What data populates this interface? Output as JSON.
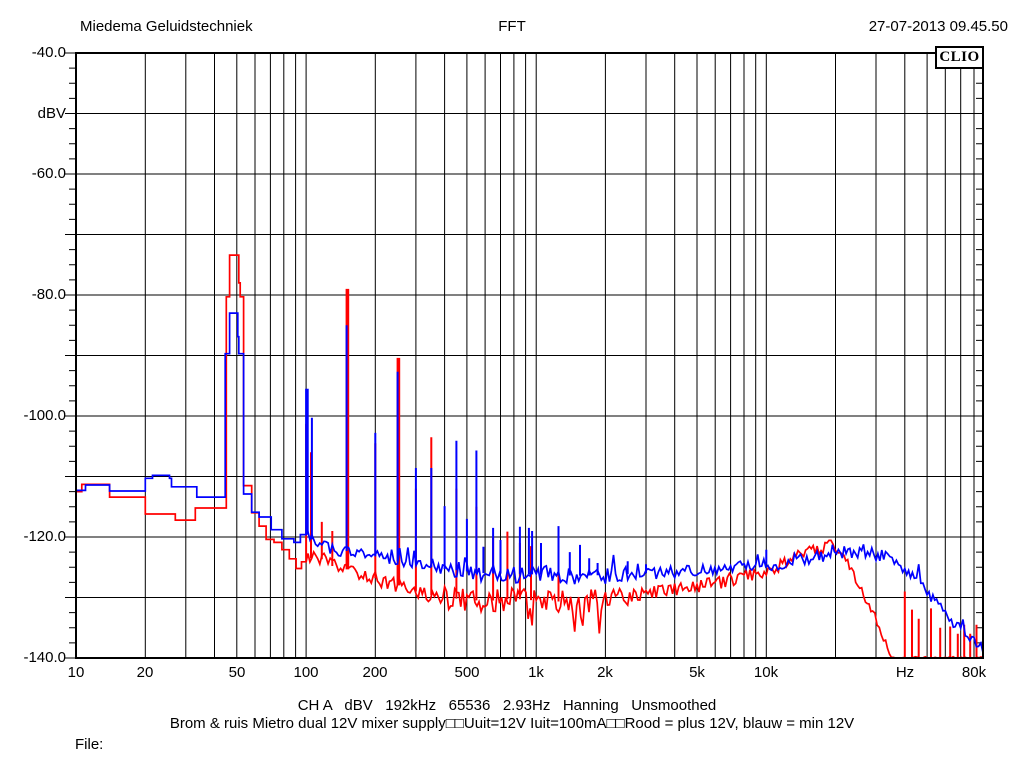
{
  "header": {
    "left": "Miedema Geluidstechniek",
    "center": "FFT",
    "right": "27-07-2013 09.45.50"
  },
  "logo": "CLIO",
  "footer": {
    "status": "CH A   dBV   192kHz   65536   2.93Hz   Hanning   Unsmoothed",
    "caption": "Brom & ruis Mietro dual 12V mixer supply□□Uuit=12V Iuit=100mA□□Rood = plus 12V, blauw = min 12V",
    "file_label": "File:"
  },
  "colors": {
    "background": "#ffffff",
    "grid": "#000000",
    "red_trace": "#ff0000",
    "blue_trace": "#0000ff"
  },
  "chart_data": {
    "type": "line",
    "title": "FFT",
    "x_axis": {
      "scale": "log",
      "unit": "Hz",
      "min_hz": 10,
      "max_hz": 87500,
      "labels": [
        {
          "text": "10",
          "hz": 10
        },
        {
          "text": "20",
          "hz": 20
        },
        {
          "text": "50",
          "hz": 50
        },
        {
          "text": "100",
          "hz": 100
        },
        {
          "text": "200",
          "hz": 200
        },
        {
          "text": "500",
          "hz": 500
        },
        {
          "text": "1k",
          "hz": 1000
        },
        {
          "text": "2k",
          "hz": 2000
        },
        {
          "text": "5k",
          "hz": 5000
        },
        {
          "text": "10k",
          "hz": 10000
        },
        {
          "text": "Hz",
          "hz": 40000
        },
        {
          "text": "80k",
          "hz": 80000
        }
      ]
    },
    "y_axis": {
      "unit": "dBV",
      "min_db": -140,
      "max_db": -40,
      "grid_step_db": 10,
      "minor_tick_db": 2.5,
      "labels": [
        {
          "text": "-40.0",
          "db": -40
        },
        {
          "text": "dBV",
          "db": -50
        },
        {
          "text": "-60.0",
          "db": -60
        },
        {
          "text": "-80.0",
          "db": -80
        },
        {
          "text": "-100.0",
          "db": -100
        },
        {
          "text": "-120.0",
          "db": -120
        },
        {
          "text": "-140.0",
          "db": -140
        }
      ]
    },
    "series": [
      {
        "name": "Rood = plus 12V",
        "color": "#ff0000",
        "noise_excursion": "down",
        "floor": [
          [
            10,
            -112.5
          ],
          [
            10.6,
            -111.3
          ],
          [
            13.5,
            -111.3
          ],
          [
            14,
            -113.4
          ],
          [
            19.5,
            -113.4
          ],
          [
            20,
            -116.2
          ],
          [
            26.5,
            -116.2
          ],
          [
            27,
            -117.2
          ],
          [
            32.5,
            -117.2
          ],
          [
            33,
            -115.2
          ],
          [
            44.5,
            -115.2
          ],
          [
            45,
            -80.3
          ],
          [
            46.5,
            -73.4
          ],
          [
            50.5,
            -73.4
          ],
          [
            51,
            -78.0
          ],
          [
            51.7,
            -80.3
          ],
          [
            53.2,
            -80.3
          ],
          [
            53.5,
            -111.5
          ],
          [
            57.5,
            -111.5
          ],
          [
            58,
            -116.0
          ],
          [
            62,
            -116.0
          ],
          [
            62.5,
            -118.2
          ],
          [
            66.5,
            -118.2
          ],
          [
            67,
            -120.4
          ],
          [
            72,
            -120.4
          ],
          [
            72.5,
            -120.9
          ],
          [
            78,
            -120.9
          ],
          [
            78.5,
            -122.1
          ],
          [
            84,
            -122.1
          ],
          [
            84.5,
            -123.6
          ],
          [
            90,
            -123.6
          ],
          [
            90.5,
            -125.2
          ],
          [
            95,
            -125.2
          ],
          [
            95.5,
            -124.1
          ],
          [
            100,
            -124.1
          ],
          [
            110,
            -123.0
          ],
          [
            130,
            -124.8
          ],
          [
            160,
            -125.6
          ],
          [
            200,
            -126.8
          ],
          [
            250,
            -128.0
          ],
          [
            320,
            -129.3
          ],
          [
            400,
            -130.0
          ],
          [
            600,
            -130.6
          ],
          [
            800,
            -130.2
          ],
          [
            1000,
            -130.5
          ],
          [
            1500,
            -130.8
          ],
          [
            2000,
            -130.2
          ],
          [
            3000,
            -129.4
          ],
          [
            4000,
            -128.6
          ],
          [
            5000,
            -128.3
          ],
          [
            6500,
            -127.4
          ],
          [
            8000,
            -126.4
          ],
          [
            10000,
            -125.6
          ],
          [
            12000,
            -124.3
          ],
          [
            14000,
            -123.1
          ],
          [
            16000,
            -122.3
          ],
          [
            18000,
            -121.6
          ],
          [
            19500,
            -121.2
          ],
          [
            21000,
            -122.3
          ],
          [
            23000,
            -124.6
          ],
          [
            25000,
            -127.4
          ],
          [
            27000,
            -130.0
          ],
          [
            29000,
            -132.6
          ],
          [
            31000,
            -135.2
          ],
          [
            33000,
            -137.6
          ],
          [
            35000,
            -140
          ],
          [
            87500,
            -140
          ]
        ],
        "spikes": [
          [
            100,
            -101.3,
            2
          ],
          [
            105,
            -106,
            2
          ],
          [
            117,
            -117.5,
            2
          ],
          [
            130,
            -119,
            2
          ],
          [
            150,
            -79.0,
            3
          ],
          [
            200,
            -104.5,
            2
          ],
          [
            250,
            -90.4,
            3
          ],
          [
            300,
            -112,
            2
          ],
          [
            350,
            -103.5,
            2
          ],
          [
            450,
            -112,
            2
          ],
          [
            550,
            -115,
            2
          ],
          [
            650,
            -120,
            2
          ],
          [
            750,
            -119.1,
            2
          ],
          [
            850,
            -121,
            2
          ],
          [
            950,
            -121.5,
            2
          ],
          [
            1250,
            -122,
            2
          ],
          [
            40000,
            -129,
            2
          ],
          [
            43000,
            -132,
            2
          ],
          [
            46000,
            -133.5,
            2
          ],
          [
            52000,
            -131.8,
            2
          ],
          [
            57000,
            -135,
            2
          ],
          [
            63000,
            -134.8,
            2
          ],
          [
            68000,
            -136,
            2
          ],
          [
            72500,
            -134.5,
            2
          ],
          [
            77000,
            -136,
            2
          ],
          [
            82000,
            -134.5,
            2
          ]
        ],
        "noise": [
          [
            100,
            400,
            1.2
          ],
          [
            400,
            2500,
            1.9
          ],
          [
            2500,
            22000,
            1.1
          ],
          [
            22000,
            33000,
            0.9
          ],
          [
            33000,
            87500,
            0.2
          ]
        ]
      },
      {
        "name": "blauw = min 12V",
        "color": "#0000ff",
        "noise_excursion": "up",
        "floor": [
          [
            10,
            -112.3
          ],
          [
            11,
            -111.4
          ],
          [
            13.5,
            -111.4
          ],
          [
            14,
            -112.4
          ],
          [
            19.5,
            -112.4
          ],
          [
            20,
            -110.3
          ],
          [
            21.5,
            -109.8
          ],
          [
            25.5,
            -110.3
          ],
          [
            26,
            -111.7
          ],
          [
            33,
            -111.7
          ],
          [
            33.5,
            -113.4
          ],
          [
            44,
            -113.4
          ],
          [
            44.5,
            -89.7
          ],
          [
            46.5,
            -83.0
          ],
          [
            50,
            -83.0
          ],
          [
            50.5,
            -86.9
          ],
          [
            51,
            -89.7
          ],
          [
            53.2,
            -89.7
          ],
          [
            53.5,
            -112.9
          ],
          [
            57.5,
            -112.9
          ],
          [
            58,
            -115.9
          ],
          [
            62,
            -115.9
          ],
          [
            62.5,
            -116.7
          ],
          [
            70,
            -116.7
          ],
          [
            70.5,
            -118.8
          ],
          [
            78,
            -118.8
          ],
          [
            78.5,
            -120.3
          ],
          [
            88,
            -120.3
          ],
          [
            88.5,
            -120.9
          ],
          [
            94,
            -120.9
          ],
          [
            94.5,
            -119.6
          ],
          [
            100,
            -119.6
          ],
          [
            110,
            -120.9
          ],
          [
            130,
            -121.9
          ],
          [
            160,
            -122.5
          ],
          [
            200,
            -123.2
          ],
          [
            250,
            -124.0
          ],
          [
            320,
            -124.8
          ],
          [
            400,
            -125.3
          ],
          [
            600,
            -126.0
          ],
          [
            800,
            -126.1
          ],
          [
            1000,
            -126.2
          ],
          [
            1500,
            -126.4
          ],
          [
            2000,
            -126.3
          ],
          [
            3000,
            -126.0
          ],
          [
            4000,
            -125.8
          ],
          [
            5000,
            -125.5
          ],
          [
            7000,
            -125.0
          ],
          [
            9000,
            -124.7
          ],
          [
            11000,
            -124.3
          ],
          [
            13000,
            -123.8
          ],
          [
            15000,
            -123.4
          ],
          [
            17000,
            -123.1
          ],
          [
            19000,
            -123.0
          ],
          [
            21000,
            -122.8
          ],
          [
            24000,
            -122.5
          ],
          [
            27000,
            -122.4
          ],
          [
            30000,
            -122.7
          ],
          [
            33000,
            -123.3
          ],
          [
            36000,
            -124.2
          ],
          [
            40000,
            -125.5
          ],
          [
            44000,
            -127.0
          ],
          [
            48000,
            -128.6
          ],
          [
            52000,
            -130.0
          ],
          [
            56000,
            -131.4
          ],
          [
            60000,
            -132.6
          ],
          [
            65000,
            -134.0
          ],
          [
            70000,
            -135.3
          ],
          [
            75000,
            -136.4
          ],
          [
            80000,
            -137.2
          ],
          [
            87500,
            -138.8
          ]
        ],
        "spikes": [
          [
            100,
            -95.5,
            3
          ],
          [
            106,
            -100.3,
            2
          ],
          [
            150,
            -85.0,
            2
          ],
          [
            200,
            -102.8,
            2
          ],
          [
            250,
            -92.7,
            2
          ],
          [
            300,
            -108.6,
            2
          ],
          [
            350,
            -108.6,
            2
          ],
          [
            400,
            -114.9,
            2
          ],
          [
            450,
            -104.1,
            2
          ],
          [
            500,
            -117,
            2
          ],
          [
            550,
            -105.7,
            2
          ],
          [
            590,
            -121.6,
            2
          ],
          [
            650,
            -118.5,
            2
          ],
          [
            700,
            -120.5,
            2
          ],
          [
            850,
            -118.3,
            2
          ],
          [
            930,
            -118.5,
            2
          ],
          [
            960,
            -119,
            2
          ],
          [
            1050,
            -121,
            2
          ],
          [
            1250,
            -118.2,
            2
          ],
          [
            1400,
            -122.5,
            2
          ],
          [
            1550,
            -121.3,
            2
          ],
          [
            1700,
            -123.5,
            2
          ],
          [
            1850,
            -124.3,
            2
          ],
          [
            2500,
            -124,
            2
          ],
          [
            3000,
            -124.5,
            2
          ],
          [
            10000,
            -122.1,
            2
          ]
        ],
        "noise": [
          [
            100,
            400,
            1.0
          ],
          [
            400,
            2500,
            1.5
          ],
          [
            2500,
            10000,
            1.0
          ],
          [
            10000,
            33000,
            1.2
          ],
          [
            33000,
            87500,
            1.0
          ]
        ]
      }
    ]
  }
}
